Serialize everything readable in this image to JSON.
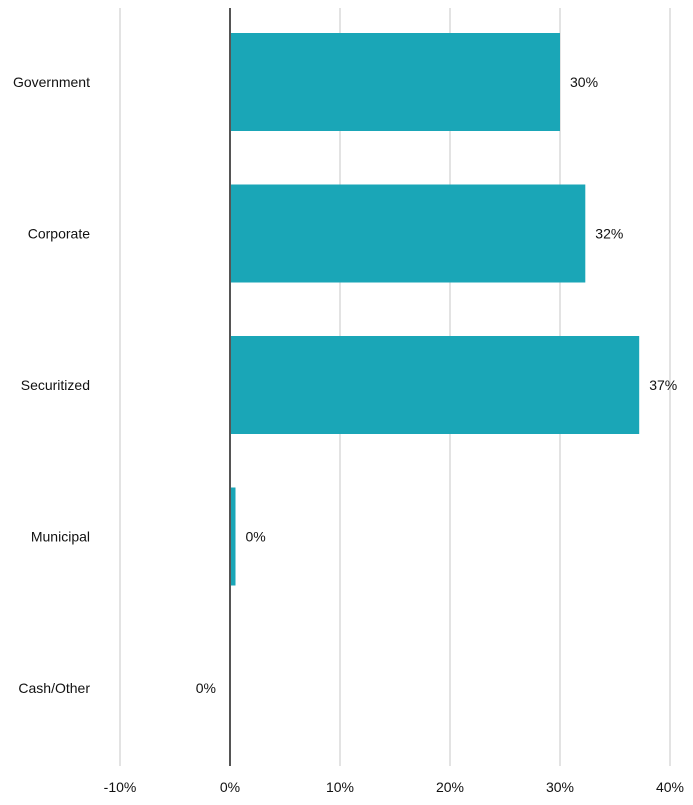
{
  "chart_data": {
    "type": "bar",
    "orientation": "horizontal",
    "categories": [
      "Government",
      "Corporate",
      "Securitized",
      "Municipal",
      "Cash/Other"
    ],
    "values": [
      30.0,
      32.3,
      37.2,
      0.5,
      0.0
    ],
    "value_labels": [
      "30%",
      "32%",
      "37%",
      "0%",
      "0%"
    ],
    "xlim": [
      -10,
      40
    ],
    "xticks": [
      -10,
      0,
      10,
      20,
      30,
      40
    ],
    "xtick_labels": [
      "-10%",
      "0%",
      "10%",
      "20%",
      "30%",
      "40%"
    ],
    "grid": true,
    "colors": {
      "bar": "#1aa6b7",
      "grid": "#e3e3e3",
      "zero_line": "#555555",
      "text": "#111111"
    }
  }
}
